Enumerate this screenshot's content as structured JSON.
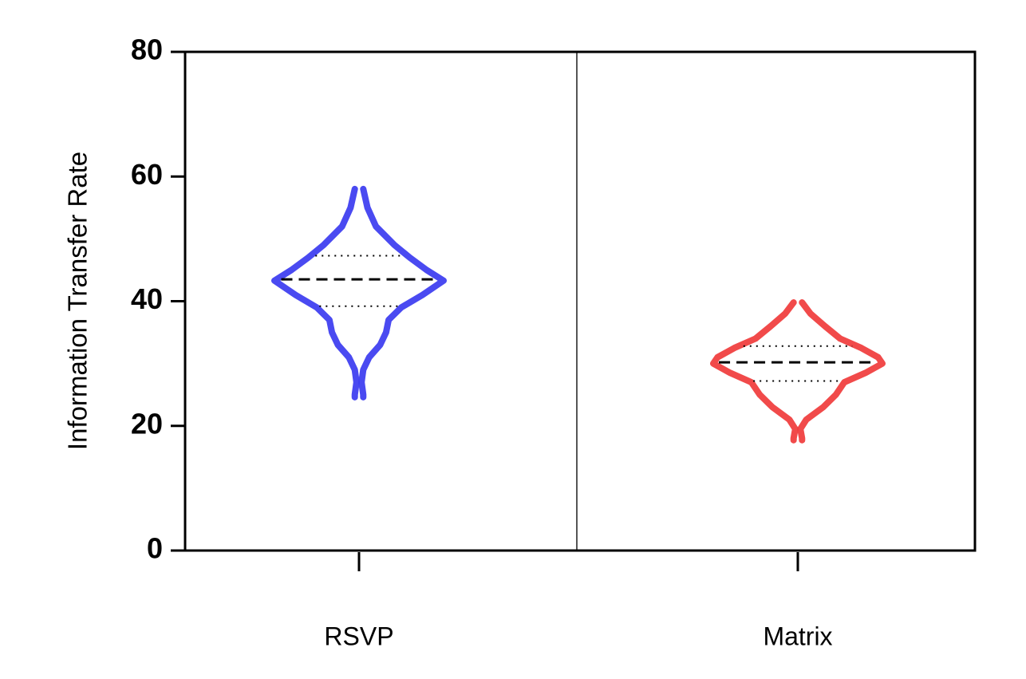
{
  "chart_data": {
    "type": "violin",
    "ylabel": "Information Transfer Rate",
    "categories": [
      "RSVP",
      "Matrix"
    ],
    "ylim": [
      0,
      80
    ],
    "yticks": [
      0,
      20,
      40,
      60,
      80
    ],
    "violins": [
      {
        "color": "#3b3bf0",
        "median": 43.5,
        "q1": 39.2,
        "q3": 47.3,
        "y": [
          24.6,
          25,
          27,
          29,
          31,
          33,
          35,
          37,
          39,
          41,
          43.3,
          45,
          47,
          49,
          52,
          55,
          58
        ],
        "density": [
          0.05,
          0.05,
          0.03,
          0.05,
          0.12,
          0.25,
          0.32,
          0.35,
          0.5,
          0.75,
          1.0,
          0.8,
          0.6,
          0.42,
          0.2,
          0.1,
          0.05
        ]
      },
      {
        "color": "#f03b3b",
        "median": 30.2,
        "q1": 27.2,
        "q3": 32.8,
        "y": [
          17.7,
          18,
          19.5,
          21,
          23,
          25,
          27,
          28.5,
          30,
          31,
          32.5,
          34,
          36,
          38,
          39.8
        ],
        "density": [
          0.05,
          0.05,
          0.03,
          0.1,
          0.3,
          0.45,
          0.55,
          0.8,
          1.0,
          0.95,
          0.75,
          0.5,
          0.32,
          0.15,
          0.05
        ]
      }
    ]
  }
}
